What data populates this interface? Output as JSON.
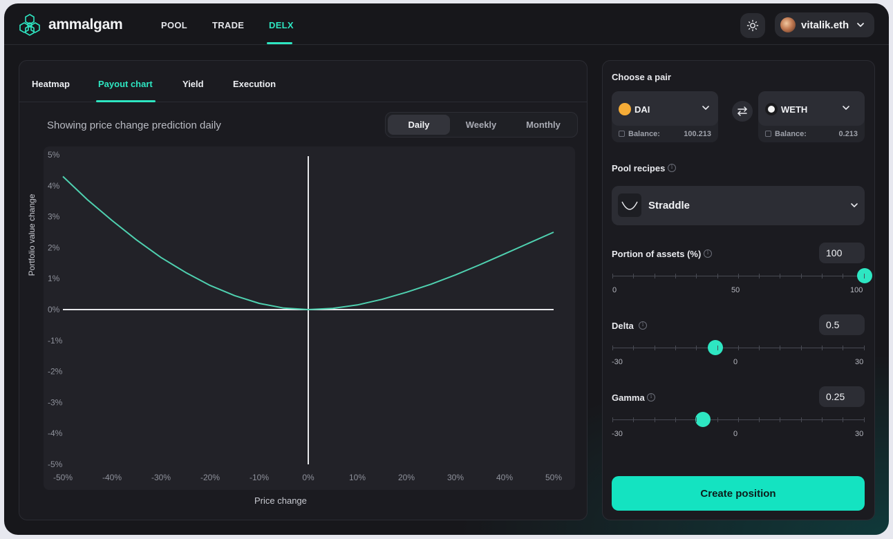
{
  "brand": {
    "name": "ammalgam",
    "accent": "#2ee6c2"
  },
  "nav": {
    "items": [
      "POOL",
      "TRADE",
      "DELX"
    ],
    "active": "DELX"
  },
  "header": {
    "theme_icon": "sun-icon",
    "user": "vitalik.eth"
  },
  "tabs": {
    "items": [
      "Heatmap",
      "Payout chart",
      "Yield",
      "Execution"
    ],
    "active": "Payout chart"
  },
  "chart_header": {
    "subtitle": "Showing price change prediction daily",
    "periods": [
      "Daily",
      "Weekly",
      "Monthly"
    ],
    "active_period": "Daily"
  },
  "chart_data": {
    "type": "line",
    "xlabel": "Price change",
    "ylabel": "Portfolio value change",
    "xticks": [
      "-50%",
      "-40%",
      "-30%",
      "-20%",
      "-10%",
      "0%",
      "10%",
      "20%",
      "30%",
      "40%",
      "50%"
    ],
    "yticks": [
      "5%",
      "4%",
      "3%",
      "2%",
      "1%",
      "0%",
      "-1%",
      "-2%",
      "-3%",
      "-4%",
      "-5%"
    ],
    "xlim": [
      -50,
      50
    ],
    "ylim": [
      -5,
      5
    ],
    "series": [
      {
        "x": [
          -50,
          -45,
          -40,
          -35,
          -30,
          -25,
          -20,
          -15,
          -10,
          -5,
          0,
          5,
          10,
          15,
          20,
          25,
          30,
          35,
          40,
          45,
          50
        ],
        "y": [
          4.3,
          3.55,
          2.88,
          2.25,
          1.68,
          1.2,
          0.78,
          0.45,
          0.2,
          0.05,
          0,
          0.04,
          0.15,
          0.33,
          0.56,
          0.82,
          1.12,
          1.45,
          1.8,
          2.15,
          2.5
        ]
      }
    ],
    "color": "#4fd1b0"
  },
  "pair": {
    "title": "Choose a pair",
    "balance_label": "Balance:",
    "token_a": {
      "symbol": "DAI",
      "balance": "100.213",
      "color": "#f5ac37"
    },
    "token_b": {
      "symbol": "WETH",
      "balance": "0.213",
      "color": "#ffffff"
    }
  },
  "recipes": {
    "title": "Pool recipes",
    "selected": "Straddle"
  },
  "portion": {
    "label": "Portion of assets (%)",
    "value": "100",
    "min": "0",
    "mid": "50",
    "max": "100",
    "fraction": 1.0
  },
  "delta": {
    "label": "Delta",
    "value": "0.5",
    "min": "-30",
    "mid": "0",
    "max": "30",
    "fraction": 0.408
  },
  "gamma": {
    "label": "Gamma",
    "value": "0.25",
    "min": "-30",
    "mid": "0",
    "max": "30",
    "fraction": 0.358
  },
  "cta": {
    "label": "Create position"
  }
}
